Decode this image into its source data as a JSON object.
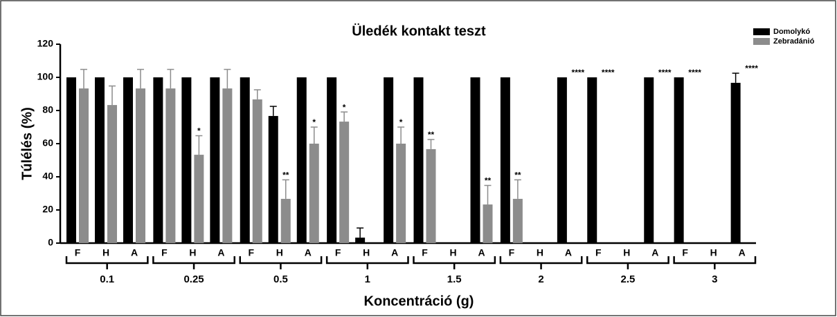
{
  "chart_data": {
    "type": "grouped_bar",
    "title": "Üledék kontakt teszt",
    "x_label": "Koncentráció (g)",
    "y_label": "Túlélés (%)",
    "categories": [
      "F",
      "H",
      "A",
      "F",
      "H",
      "A",
      "F",
      "H",
      "A",
      "F",
      "H",
      "A",
      "F",
      "H",
      "A",
      "F",
      "H",
      "A",
      "F",
      "H",
      "A",
      "F",
      "H",
      "A"
    ],
    "groups": [
      "0.1",
      "0.25",
      "0.5",
      "1",
      "1.5",
      "2",
      "2.5",
      "3"
    ],
    "ylim": [
      0,
      120
    ],
    "yticks": [
      0,
      20,
      40,
      60,
      80,
      100,
      120
    ],
    "legend": "top-right",
    "series": [
      {
        "name": "Domolykó",
        "color": "#000000",
        "values": [
          100,
          100,
          100,
          100,
          100,
          100,
          100,
          76.7,
          100,
          100,
          3.3,
          100,
          100,
          0,
          100,
          100,
          0,
          100,
          100,
          0,
          100,
          100,
          0,
          96.7
        ],
        "errors": [
          null,
          null,
          null,
          null,
          null,
          null,
          null,
          5.8,
          null,
          null,
          5.8,
          null,
          null,
          null,
          null,
          null,
          null,
          null,
          null,
          null,
          null,
          null,
          null,
          5.8
        ]
      },
      {
        "name": "Zebradánió",
        "color": "#8c8c8c",
        "values": [
          93.3,
          83.3,
          93.3,
          93.3,
          53.3,
          93.3,
          86.7,
          26.7,
          60,
          73.3,
          0,
          60,
          56.7,
          0,
          23.3,
          26.7,
          0,
          0,
          0,
          0,
          0,
          0,
          0,
          0
        ],
        "errors": [
          11.5,
          11.5,
          11.5,
          11.5,
          11.5,
          11.5,
          5.8,
          11.5,
          10,
          5.8,
          null,
          10,
          5.8,
          null,
          11.5,
          11.5,
          null,
          null,
          null,
          null,
          null,
          null,
          null,
          null
        ],
        "annotations": [
          null,
          null,
          null,
          null,
          "*",
          null,
          null,
          "**",
          "*",
          "*",
          null,
          "*",
          "**",
          null,
          "**",
          "**",
          null,
          "****",
          "****",
          null,
          "****",
          "****",
          null,
          "****"
        ]
      }
    ]
  }
}
